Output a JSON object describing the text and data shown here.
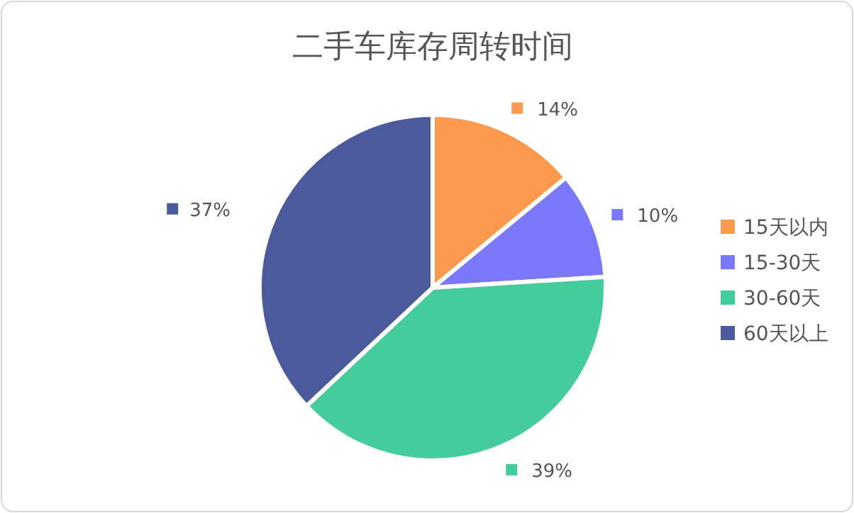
{
  "chart_data": {
    "type": "pie",
    "title": "二手车库存周转时间",
    "categories": [
      "15天以内",
      "15-30天",
      "30-60天",
      "60天以上"
    ],
    "values": [
      14,
      10,
      39,
      37
    ],
    "colors": [
      "#fb9a4f",
      "#7b78fb",
      "#45cc9c",
      "#4b5a9c"
    ],
    "value_labels": [
      "14%",
      "10%",
      "39%",
      "37%"
    ],
    "legend": "right"
  }
}
